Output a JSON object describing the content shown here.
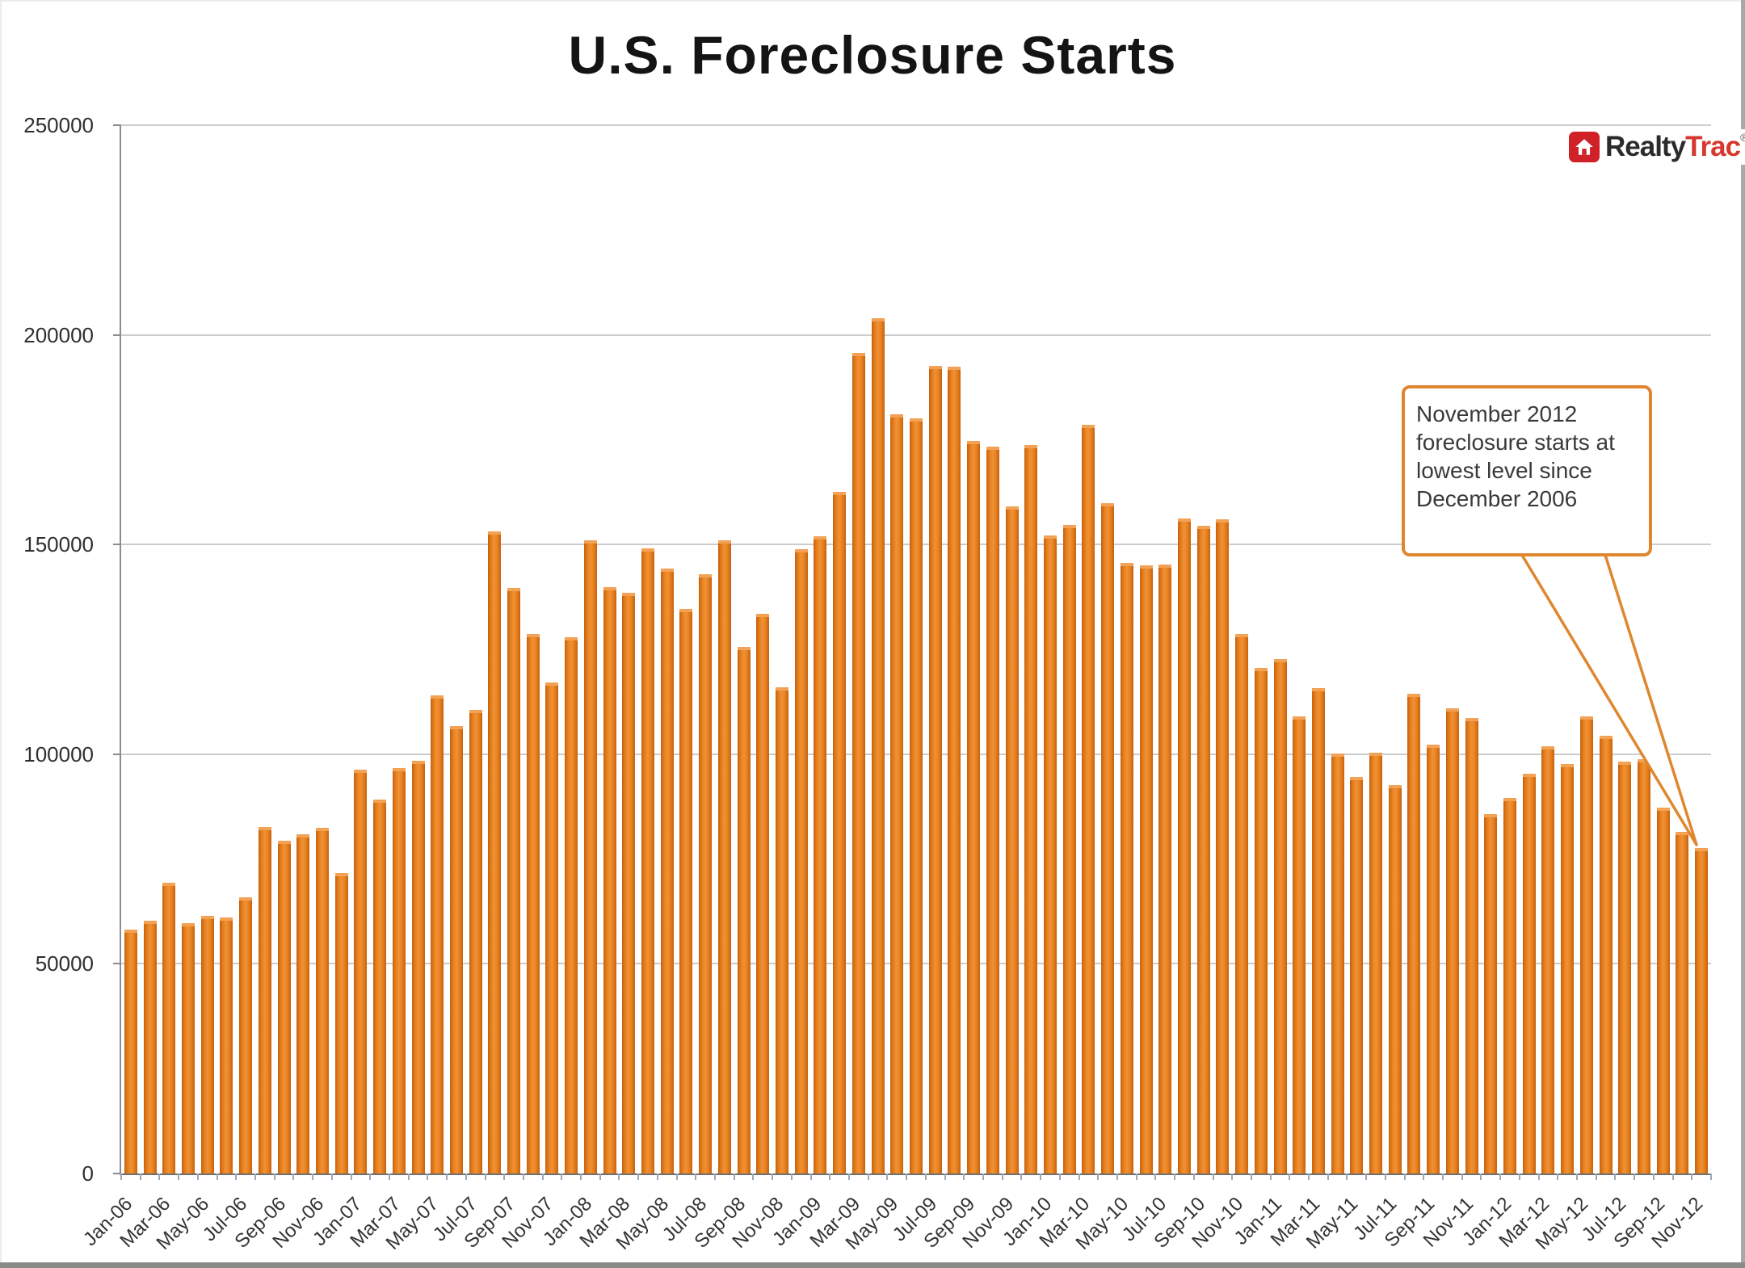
{
  "title": "U.S. Foreclosure Starts",
  "logo": {
    "realty": "Realty",
    "trac": "Trac",
    "reg": "®"
  },
  "callout": {
    "lines": [
      "November 2012",
      "foreclosure starts at",
      "lowest level since",
      "December 2006"
    ]
  },
  "colors": {
    "bar": "#e8821e",
    "bar_edge": "#c66110",
    "callout_border": "#e0862f",
    "gridline": "#cccccc",
    "logo_red": "#cf2127",
    "logo_trac_red": "#d6382e"
  },
  "chart_data": {
    "type": "bar",
    "title": "U.S. Foreclosure Starts",
    "xlabel": "",
    "ylabel": "",
    "ylim": [
      0,
      250000
    ],
    "y_ticks": [
      0,
      50000,
      100000,
      150000,
      200000,
      250000
    ],
    "x_tick_label_every": 2,
    "grid": "horizontal",
    "legend": "none",
    "categories": [
      "Jan-06",
      "Feb-06",
      "Mar-06",
      "Apr-06",
      "May-06",
      "Jun-06",
      "Jul-06",
      "Aug-06",
      "Sep-06",
      "Oct-06",
      "Nov-06",
      "Dec-06",
      "Jan-07",
      "Feb-07",
      "Mar-07",
      "Apr-07",
      "May-07",
      "Jun-07",
      "Jul-07",
      "Aug-07",
      "Sep-07",
      "Oct-07",
      "Nov-07",
      "Dec-07",
      "Jan-08",
      "Feb-08",
      "Mar-08",
      "Apr-08",
      "May-08",
      "Jun-08",
      "Jul-08",
      "Aug-08",
      "Sep-08",
      "Oct-08",
      "Nov-08",
      "Dec-08",
      "Jan-09",
      "Feb-09",
      "Mar-09",
      "Apr-09",
      "May-09",
      "Jun-09",
      "Jul-09",
      "Aug-09",
      "Sep-09",
      "Oct-09",
      "Nov-09",
      "Dec-09",
      "Jan-10",
      "Feb-10",
      "Mar-10",
      "Apr-10",
      "May-10",
      "Jun-10",
      "Jul-10",
      "Aug-10",
      "Sep-10",
      "Oct-10",
      "Nov-10",
      "Dec-10",
      "Jan-11",
      "Feb-11",
      "Mar-11",
      "Apr-11",
      "May-11",
      "Jun-11",
      "Jul-11",
      "Aug-11",
      "Sep-11",
      "Oct-11",
      "Nov-11",
      "Dec-11",
      "Jan-12",
      "Feb-12",
      "Mar-12",
      "Apr-12",
      "May-12",
      "Jun-12",
      "Jul-12",
      "Aug-12",
      "Sep-12",
      "Oct-12",
      "Nov-12"
    ],
    "values": [
      58200,
      60300,
      69300,
      59700,
      61500,
      61100,
      65800,
      82700,
      79400,
      80900,
      82500,
      71600,
      96300,
      89100,
      96700,
      98400,
      114000,
      106800,
      110500,
      153100,
      139700,
      128600,
      117100,
      127800,
      151000,
      139900,
      138500,
      149000,
      144200,
      134600,
      143000,
      151000,
      125500,
      133500,
      116000,
      148800,
      152000,
      162600,
      195700,
      203900,
      181100,
      180000,
      192600,
      192400,
      174700,
      173400,
      159000,
      173700,
      152100,
      154700,
      178600,
      159900,
      145700,
      145100,
      145300,
      156200,
      154500,
      156000,
      128600,
      120600,
      122600,
      109000,
      115800,
      100200,
      94600,
      100400,
      92600,
      114400,
      102300,
      110900,
      108600,
      85800,
      89500,
      95300,
      101800,
      97700,
      109100,
      104300,
      98200,
      98800,
      87200,
      81500,
      77600
    ],
    "annotation": {
      "text": "November 2012 foreclosure starts at lowest level since December 2006",
      "target_category": "Nov-12"
    }
  }
}
